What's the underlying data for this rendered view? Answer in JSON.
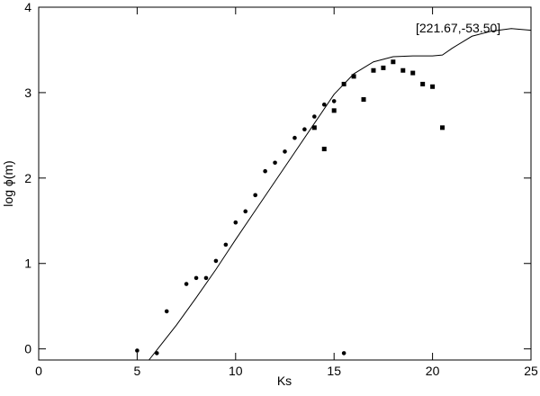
{
  "chart_data": {
    "type": "scatter",
    "x_label": "Ks",
    "y_label": "log ϕ(m)",
    "annotation": "[221.67,-53.50]",
    "xlim": [
      0,
      25
    ],
    "ylim": [
      -0.13,
      4
    ],
    "xticks": [
      0,
      5,
      10,
      15,
      20,
      25
    ],
    "yticks": [
      0,
      1,
      2,
      3,
      4
    ],
    "series": [
      {
        "kind": "line",
        "color": "#000000",
        "x": [
          5.6,
          7,
          8,
          9,
          10,
          11,
          12,
          13,
          14,
          15,
          16,
          17,
          18,
          19,
          20,
          20.5,
          21,
          22,
          23,
          24,
          25
        ],
        "values": [
          -0.13,
          0.28,
          0.6,
          0.93,
          1.28,
          1.62,
          1.96,
          2.3,
          2.64,
          2.98,
          3.22,
          3.36,
          3.42,
          3.43,
          3.43,
          3.44,
          3.52,
          3.66,
          3.72,
          3.75,
          3.73
        ]
      },
      {
        "kind": "circle",
        "color": "#000000",
        "x": [
          5,
          6,
          6.5,
          7.5,
          8,
          8.5,
          9,
          9.5,
          10,
          10.5,
          11,
          11.5,
          12,
          12.5,
          13,
          13.5,
          14,
          14.5,
          15,
          15.5
        ],
        "values": [
          -0.02,
          -0.05,
          0.44,
          0.76,
          0.83,
          0.83,
          1.03,
          1.22,
          1.48,
          1.61,
          1.8,
          2.08,
          2.18,
          2.31,
          2.47,
          2.57,
          2.72,
          2.86,
          2.9,
          -0.05
        ]
      },
      {
        "kind": "square",
        "color": "#000000",
        "x": [
          14,
          14.5,
          15,
          15.5,
          16,
          16.5,
          17,
          17.5,
          18,
          18.5,
          19,
          19.5,
          20,
          20.5
        ],
        "values": [
          2.59,
          2.34,
          2.79,
          3.1,
          3.19,
          2.92,
          3.26,
          3.29,
          3.36,
          3.26,
          3.23,
          3.1,
          3.07,
          2.59
        ]
      }
    ]
  }
}
